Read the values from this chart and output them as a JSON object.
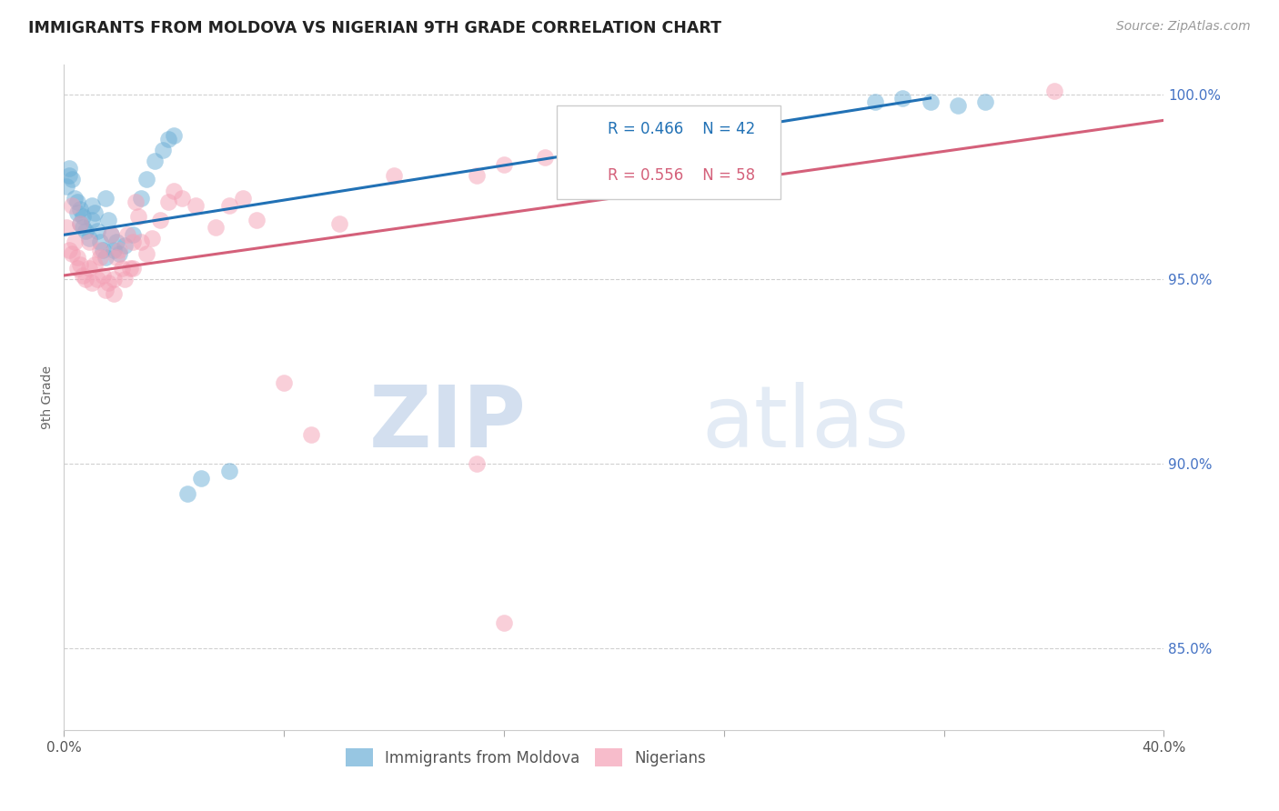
{
  "title": "IMMIGRANTS FROM MOLDOVA VS NIGERIAN 9TH GRADE CORRELATION CHART",
  "source": "Source: ZipAtlas.com",
  "ylabel_label": "9th Grade",
  "x_min": 0.0,
  "x_max": 0.4,
  "y_min": 0.828,
  "y_max": 1.008,
  "x_ticks": [
    0.0,
    0.08,
    0.16,
    0.24,
    0.32,
    0.4
  ],
  "x_tick_labels": [
    "0.0%",
    "",
    "",
    "",
    "",
    "40.0%"
  ],
  "y_ticks": [
    0.85,
    0.9,
    0.95,
    1.0
  ],
  "y_tick_labels": [
    "85.0%",
    "90.0%",
    "95.0%",
    "100.0%"
  ],
  "blue_color": "#6baed6",
  "pink_color": "#f4a0b5",
  "blue_line_color": "#2171b5",
  "pink_line_color": "#d4607a",
  "legend_R_blue": "R = 0.466",
  "legend_N_blue": "N = 42",
  "legend_R_pink": "R = 0.556",
  "legend_N_pink": "N = 58",
  "watermark_zip": "ZIP",
  "watermark_atlas": "atlas",
  "blue_line_x": [
    0.0,
    0.315
  ],
  "blue_line_y": [
    0.962,
    0.999
  ],
  "pink_line_x": [
    0.0,
    0.4
  ],
  "pink_line_y": [
    0.951,
    0.993
  ],
  "blue_scatter_x": [
    0.001,
    0.002,
    0.002,
    0.003,
    0.004,
    0.005,
    0.005,
    0.006,
    0.006,
    0.007,
    0.007,
    0.008,
    0.009,
    0.01,
    0.01,
    0.011,
    0.012,
    0.013,
    0.014,
    0.015,
    0.015,
    0.016,
    0.017,
    0.018,
    0.019,
    0.02,
    0.022,
    0.025,
    0.028,
    0.03,
    0.033,
    0.036,
    0.04,
    0.05,
    0.06,
    0.295,
    0.305,
    0.315,
    0.325,
    0.335,
    0.038,
    0.045
  ],
  "blue_scatter_y": [
    0.975,
    0.978,
    0.98,
    0.977,
    0.972,
    0.968,
    0.971,
    0.965,
    0.969,
    0.967,
    0.964,
    0.963,
    0.961,
    0.966,
    0.97,
    0.968,
    0.963,
    0.96,
    0.958,
    0.956,
    0.972,
    0.966,
    0.962,
    0.958,
    0.96,
    0.957,
    0.959,
    0.962,
    0.972,
    0.977,
    0.982,
    0.985,
    0.989,
    0.896,
    0.898,
    0.998,
    0.999,
    0.998,
    0.997,
    0.998,
    0.988,
    0.892
  ],
  "pink_scatter_x": [
    0.001,
    0.002,
    0.003,
    0.004,
    0.005,
    0.005,
    0.006,
    0.007,
    0.008,
    0.009,
    0.01,
    0.011,
    0.012,
    0.013,
    0.014,
    0.015,
    0.016,
    0.017,
    0.018,
    0.019,
    0.02,
    0.021,
    0.022,
    0.023,
    0.024,
    0.025,
    0.026,
    0.027,
    0.028,
    0.03,
    0.032,
    0.035,
    0.038,
    0.04,
    0.043,
    0.048,
    0.055,
    0.06,
    0.065,
    0.07,
    0.08,
    0.09,
    0.1,
    0.12,
    0.15,
    0.16,
    0.175,
    0.2,
    0.22,
    0.16,
    0.003,
    0.006,
    0.009,
    0.013,
    0.018,
    0.025,
    0.15,
    0.36
  ],
  "pink_scatter_y": [
    0.964,
    0.958,
    0.957,
    0.96,
    0.953,
    0.956,
    0.954,
    0.951,
    0.95,
    0.953,
    0.949,
    0.954,
    0.95,
    0.956,
    0.951,
    0.947,
    0.949,
    0.962,
    0.946,
    0.956,
    0.958,
    0.953,
    0.95,
    0.962,
    0.953,
    0.953,
    0.971,
    0.967,
    0.96,
    0.957,
    0.961,
    0.966,
    0.971,
    0.974,
    0.972,
    0.97,
    0.964,
    0.97,
    0.972,
    0.966,
    0.922,
    0.908,
    0.965,
    0.978,
    0.978,
    0.981,
    0.983,
    0.988,
    0.978,
    0.857,
    0.97,
    0.965,
    0.96,
    0.958,
    0.95,
    0.96,
    0.9,
    1.001
  ]
}
